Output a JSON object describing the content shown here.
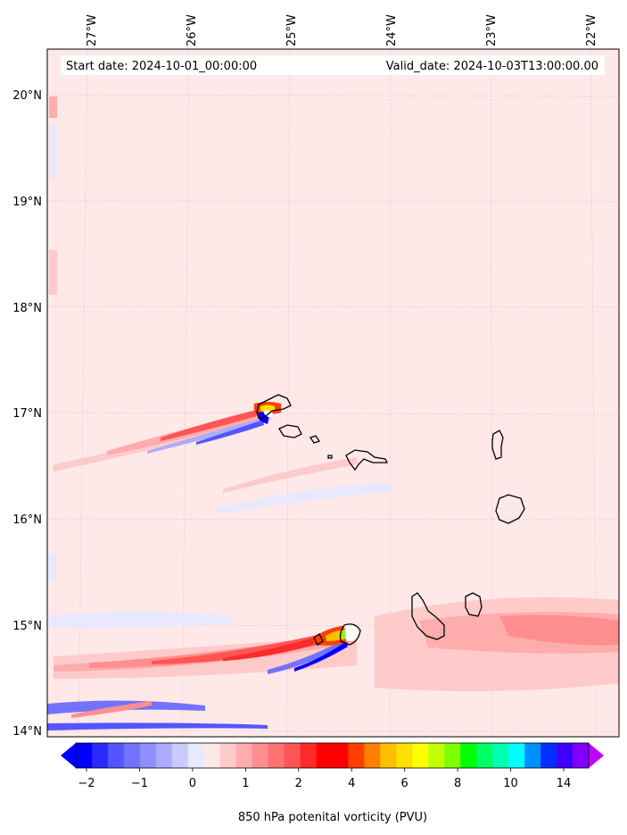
{
  "header": {
    "start_date": "Start date: 2024-10-01_00:00:00",
    "valid_date": "Valid_date: 2024-10-03T13:00:00.00"
  },
  "map": {
    "lon_labels": [
      "27°W",
      "26°W",
      "25°W",
      "24°W",
      "23°W",
      "22°W"
    ],
    "lat_labels": [
      "20°N",
      "19°N",
      "18°N",
      "17°N",
      "16°N",
      "15°N",
      "14°N"
    ],
    "background_color": "#ffe8e8"
  },
  "colorbar": {
    "title": "850 hPa potenital vorticity (PVU)",
    "tick_labels": [
      "−2",
      "−1",
      "0",
      "1",
      "2",
      "4",
      "6",
      "8",
      "10",
      "14"
    ],
    "colors": [
      "#0000ff",
      "#2a2aff",
      "#5555ff",
      "#7272ff",
      "#8f8fff",
      "#acacff",
      "#cacaff",
      "#e8e8ff",
      "#ffe8e8",
      "#ffcaca",
      "#ffacac",
      "#ff8f8f",
      "#ff7272",
      "#ff5555",
      "#ff2a2a",
      "#ff0000",
      "#ff0000",
      "#ff4000",
      "#ff8000",
      "#ffbf00",
      "#ffe000",
      "#ffff00",
      "#c0ff00",
      "#80ff00",
      "#00ff00",
      "#00ff60",
      "#00ffb0",
      "#00ffff",
      "#0090ff",
      "#0030ff",
      "#4000ff",
      "#8000ff"
    ],
    "extend_low_color": "#0000ff",
    "extend_high_color": "#c000ff"
  }
}
